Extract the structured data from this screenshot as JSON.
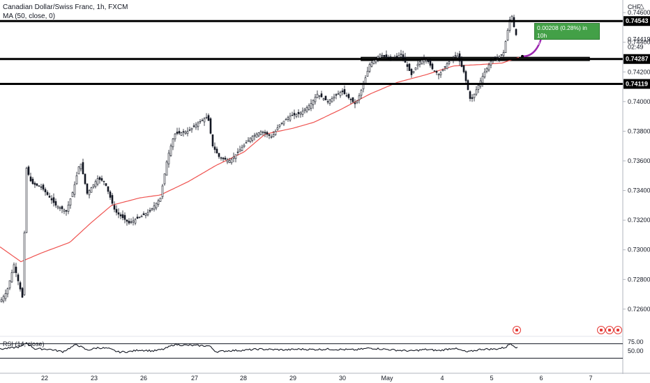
{
  "header": {
    "title": "Canadian Dollar/Swiss Franc, 1h, FXCM",
    "indicator": "MA (50, close, 0)"
  },
  "currency_label": "CHF",
  "price_axis": {
    "ticks": [
      "0.74600",
      "0.74400",
      "0.74200",
      "0.74000",
      "0.73800",
      "0.73600",
      "0.73400",
      "0.73200",
      "0.73000",
      "0.72800",
      "0.72600"
    ],
    "tick_values": [
      0.746,
      0.744,
      0.742,
      0.74,
      0.738,
      0.736,
      0.734,
      0.732,
      0.73,
      0.728,
      0.726
    ],
    "range": [
      0.72515,
      0.74685
    ],
    "current_price": {
      "label": "0.74419",
      "value": 0.74419,
      "countdown": "02:49"
    }
  },
  "levels": [
    {
      "label": "0.74543",
      "value": 0.74543
    },
    {
      "label": "0.74287",
      "value": 0.74287
    },
    {
      "label": "0.74119",
      "value": 0.74119
    }
  ],
  "zone": {
    "top": 0.74298,
    "bottom": 0.74277,
    "color": "#4caf50"
  },
  "projection": {
    "line1": "0.00208 (0.28%) in 10h",
    "line2": "0.74513",
    "line2_date": "2021-05-06  01:00",
    "from": 0.74305,
    "to": 0.74513
  },
  "time_axis": {
    "labels": [
      "22",
      "23",
      "26",
      "27",
      "28",
      "29",
      "30",
      "May",
      "4",
      "5",
      "6",
      "7"
    ]
  },
  "rsi": {
    "label": "RSI (14, close)",
    "ticks": [
      "75.00",
      "50.00"
    ],
    "tick_values": [
      75,
      50
    ],
    "upper": 70,
    "lower": 30
  },
  "colors": {
    "up": "#131722",
    "down": "#131722",
    "ma": "#ef5350",
    "level_line": "#000000",
    "projection_box": "#43a047",
    "arrow": "#9c27b0",
    "grid": "#f0f3fa"
  },
  "chart_data": {
    "type": "candlestick",
    "title": "Canadian Dollar/Swiss Franc, 1h, FXCM",
    "xlabel": "",
    "ylabel": "",
    "x": [
      "22",
      "23",
      "26",
      "27",
      "28",
      "29",
      "30",
      "May",
      "4",
      "5",
      "6",
      "7"
    ],
    "ylim": [
      0.72515,
      0.74685
    ],
    "series": [
      {
        "name": "MA (50, close, 0)",
        "anchors": [
          [
            0,
            0.7302
          ],
          [
            30,
            0.7292
          ],
          [
            60,
            0.7298
          ],
          [
            100,
            0.7305
          ],
          [
            130,
            0.7318
          ],
          [
            160,
            0.733
          ],
          [
            200,
            0.7335
          ],
          [
            230,
            0.7337
          ],
          [
            270,
            0.7346
          ],
          [
            310,
            0.7357
          ],
          [
            350,
            0.7366
          ],
          [
            380,
            0.7378
          ],
          [
            420,
            0.7382
          ],
          [
            450,
            0.7386
          ],
          [
            490,
            0.7395
          ],
          [
            530,
            0.7405
          ],
          [
            570,
            0.7413
          ],
          [
            610,
            0.7418
          ],
          [
            650,
            0.7424
          ],
          [
            690,
            0.7425
          ],
          [
            720,
            0.7426
          ],
          [
            745,
            0.743
          ]
        ]
      }
    ],
    "price_path": [
      [
        0,
        0.7265
      ],
      [
        10,
        0.7272
      ],
      [
        20,
        0.729
      ],
      [
        32,
        0.7268
      ],
      [
        38,
        0.7355
      ],
      [
        45,
        0.7345
      ],
      [
        60,
        0.7342
      ],
      [
        80,
        0.733
      ],
      [
        95,
        0.7326
      ],
      [
        105,
        0.734
      ],
      [
        115,
        0.736
      ],
      [
        125,
        0.7338
      ],
      [
        140,
        0.7348
      ],
      [
        150,
        0.7346
      ],
      [
        165,
        0.7326
      ],
      [
        185,
        0.7318
      ],
      [
        200,
        0.7322
      ],
      [
        215,
        0.7326
      ],
      [
        230,
        0.7335
      ],
      [
        240,
        0.7362
      ],
      [
        250,
        0.7378
      ],
      [
        270,
        0.738
      ],
      [
        285,
        0.7386
      ],
      [
        298,
        0.739
      ],
      [
        305,
        0.737
      ],
      [
        315,
        0.7362
      ],
      [
        330,
        0.736
      ],
      [
        345,
        0.7368
      ],
      [
        360,
        0.7376
      ],
      [
        375,
        0.738
      ],
      [
        390,
        0.7376
      ],
      [
        400,
        0.7384
      ],
      [
        415,
        0.739
      ],
      [
        430,
        0.7392
      ],
      [
        445,
        0.7398
      ],
      [
        455,
        0.7405
      ],
      [
        470,
        0.74
      ],
      [
        490,
        0.7407
      ],
      [
        510,
        0.7398
      ],
      [
        520,
        0.741
      ],
      [
        530,
        0.7425
      ],
      [
        545,
        0.7432
      ],
      [
        560,
        0.7428
      ],
      [
        575,
        0.7432
      ],
      [
        590,
        0.7418
      ],
      [
        600,
        0.7426
      ],
      [
        610,
        0.743
      ],
      [
        620,
        0.7422
      ],
      [
        630,
        0.7418
      ],
      [
        640,
        0.7425
      ],
      [
        655,
        0.7432
      ],
      [
        665,
        0.742
      ],
      [
        675,
        0.74
      ],
      [
        685,
        0.741
      ],
      [
        695,
        0.742
      ],
      [
        705,
        0.7428
      ],
      [
        715,
        0.743
      ],
      [
        722,
        0.7433
      ],
      [
        728,
        0.7448
      ],
      [
        733,
        0.746
      ],
      [
        738,
        0.7448
      ],
      [
        742,
        0.7442
      ]
    ],
    "rsi_path": [
      [
        0,
        55
      ],
      [
        15,
        58
      ],
      [
        30,
        62
      ],
      [
        38,
        73
      ],
      [
        50,
        56
      ],
      [
        70,
        55
      ],
      [
        90,
        48
      ],
      [
        110,
        68
      ],
      [
        125,
        52
      ],
      [
        140,
        59
      ],
      [
        155,
        57
      ],
      [
        170,
        47
      ],
      [
        185,
        48
      ],
      [
        200,
        53
      ],
      [
        220,
        50
      ],
      [
        235,
        55
      ],
      [
        250,
        68
      ],
      [
        265,
        66
      ],
      [
        280,
        65
      ],
      [
        300,
        64
      ],
      [
        310,
        48
      ],
      [
        330,
        51
      ],
      [
        350,
        52
      ],
      [
        370,
        55
      ],
      [
        390,
        54
      ],
      [
        410,
        53
      ],
      [
        430,
        55
      ],
      [
        450,
        54
      ],
      [
        470,
        55
      ],
      [
        490,
        54
      ],
      [
        510,
        53
      ],
      [
        530,
        58
      ],
      [
        550,
        55
      ],
      [
        570,
        52
      ],
      [
        590,
        50
      ],
      [
        610,
        54
      ],
      [
        630,
        51
      ],
      [
        650,
        58
      ],
      [
        670,
        47
      ],
      [
        690,
        55
      ],
      [
        710,
        55
      ],
      [
        725,
        60
      ],
      [
        732,
        71
      ],
      [
        742,
        58
      ]
    ]
  }
}
